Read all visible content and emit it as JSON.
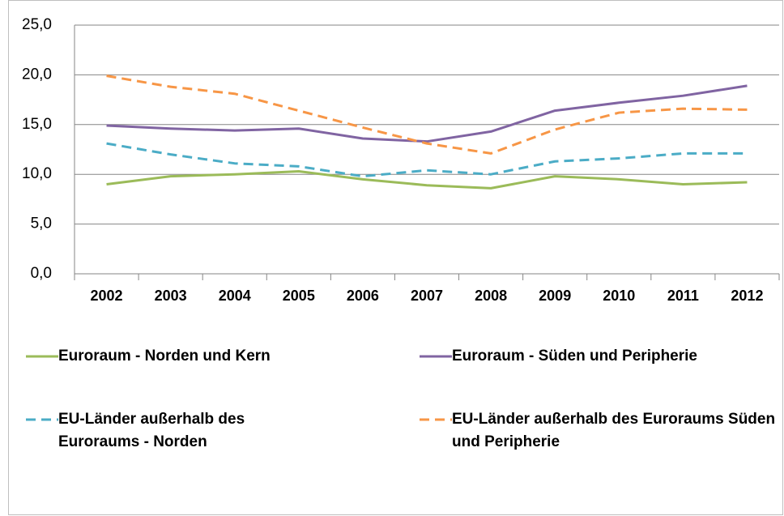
{
  "chart_data": {
    "type": "line",
    "categories": [
      "2002",
      "2003",
      "2004",
      "2005",
      "2006",
      "2007",
      "2008",
      "2009",
      "2010",
      "2011",
      "2012"
    ],
    "ylim": [
      0,
      25
    ],
    "yticks": [
      {
        "value": 0,
        "label": "0,0"
      },
      {
        "value": 5,
        "label": "5,0"
      },
      {
        "value": 10,
        "label": "10,0"
      },
      {
        "value": 15,
        "label": "15,0"
      },
      {
        "value": 20,
        "label": "20,0"
      },
      {
        "value": 25,
        "label": "25,0"
      }
    ],
    "grid": true,
    "series": [
      {
        "name": "Euroraum - Norden und Kern",
        "color": "#9bbb59",
        "dashed": false,
        "values": [
          9.0,
          9.8,
          10.0,
          10.3,
          9.5,
          8.9,
          8.6,
          9.8,
          9.5,
          9.0,
          9.2
        ]
      },
      {
        "name": "Euroraum - Süden und Peripherie",
        "color": "#8064a2",
        "dashed": false,
        "values": [
          14.9,
          14.6,
          14.4,
          14.6,
          13.6,
          13.3,
          14.3,
          16.4,
          17.2,
          17.9,
          18.9
        ]
      },
      {
        "name": "EU-Länder außerhalb des Euroraums - Norden",
        "color": "#4bacc6",
        "dashed": true,
        "values": [
          13.1,
          12.0,
          11.1,
          10.8,
          9.8,
          10.4,
          10.0,
          11.3,
          11.6,
          12.1,
          12.1
        ]
      },
      {
        "name": "EU-Länder außerhalb des Euroraums Süden und Peripherie",
        "color": "#f79646",
        "dashed": true,
        "values": [
          19.9,
          18.8,
          18.1,
          16.4,
          14.7,
          13.1,
          12.1,
          14.5,
          16.2,
          16.6,
          16.5
        ]
      }
    ]
  }
}
